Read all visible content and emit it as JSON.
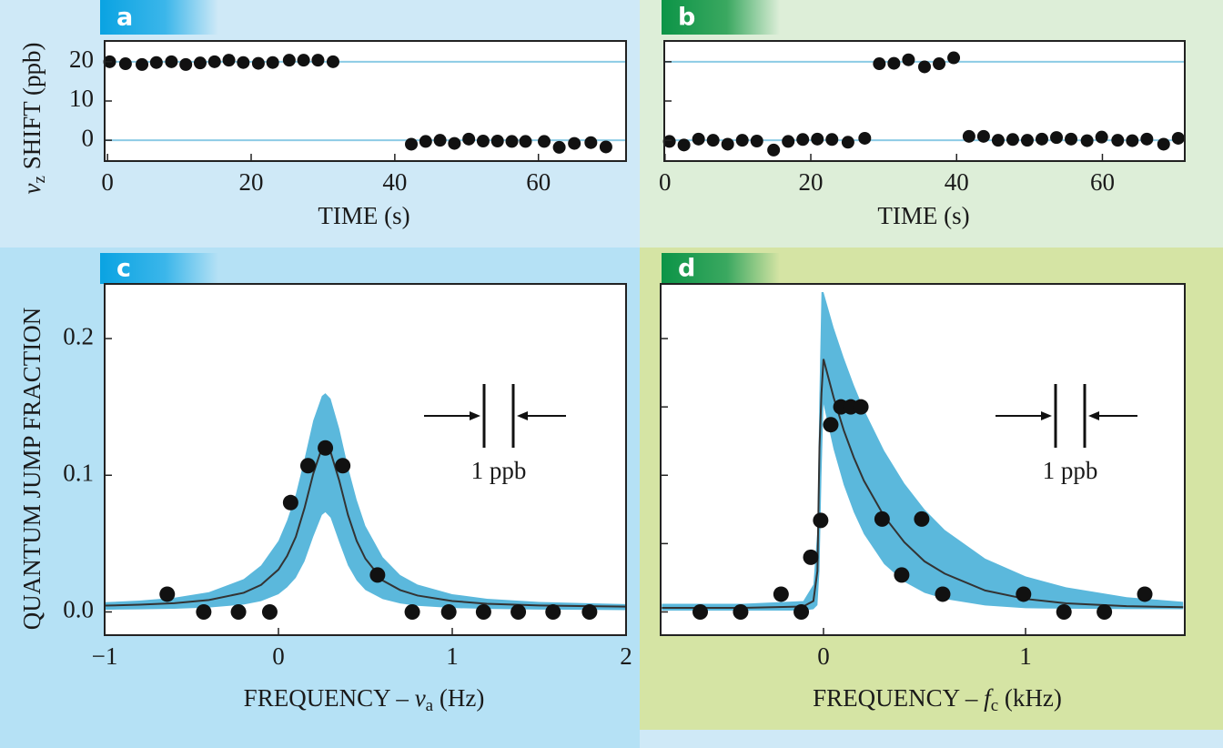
{
  "chart_data": [
    {
      "type": "scatter",
      "label": "a",
      "xlabel": {
        "text": "TIME (s)"
      },
      "ylabel": {
        "symbol": "ν",
        "subscript": "z",
        "suffix": " SHIFT (ppb)"
      },
      "xlim": [
        -0.4,
        72.2
      ],
      "ylim": [
        -5.3,
        25.3
      ],
      "xticks": [
        0,
        20,
        40,
        60
      ],
      "yticks": [
        0,
        10,
        20
      ],
      "hlines": [
        0,
        20
      ],
      "hline_color": "#8ccbe5",
      "series": [
        {
          "mark": "dots",
          "color": "#111111",
          "x": [
            0.3,
            2.5,
            4.8,
            6.8,
            8.9,
            10.9,
            12.9,
            14.9,
            16.9,
            18.9,
            21,
            23,
            25.3,
            27.3,
            29.3,
            31.4,
            42.3,
            44.3,
            46.3,
            48.3,
            50.3,
            52.3,
            54.3,
            56.3,
            58.2,
            60.8,
            62.9,
            65,
            67.3,
            69.4
          ],
          "values": [
            20,
            19.5,
            19.3,
            19.8,
            20,
            19.3,
            19.7,
            20,
            20.4,
            19.8,
            19.6,
            19.8,
            20.4,
            20.4,
            20.4,
            20,
            -1,
            -0.3,
            0,
            -0.8,
            0.3,
            -0.2,
            -0.2,
            -0.3,
            -0.3,
            -0.3,
            -1.8,
            -0.8,
            -0.6,
            -1.7
          ]
        }
      ]
    },
    {
      "type": "scatter",
      "label": "b",
      "xlabel": {
        "text": "TIME (s)"
      },
      "xlim": [
        -0.1,
        71.3
      ],
      "ylim": [
        -5.3,
        25.3
      ],
      "xticks": [
        0,
        20,
        40,
        60
      ],
      "yticks": [
        0,
        10,
        20
      ],
      "ytick_labels": false,
      "hlines": [
        0,
        20
      ],
      "hline_color": "#8ccbe5",
      "series": [
        {
          "mark": "dots",
          "color": "#111111",
          "x": [
            0.6,
            2.6,
            4.6,
            6.6,
            8.6,
            10.6,
            12.6,
            14.9,
            16.9,
            18.9,
            20.9,
            22.9,
            25.1,
            27.4,
            29.4,
            31.4,
            33.4,
            35.6,
            37.6,
            39.6,
            41.7,
            43.7,
            45.7,
            47.7,
            49.7,
            51.7,
            53.7,
            55.7,
            57.9,
            59.9,
            62.1,
            64.1,
            66.1,
            68.4,
            70.4
          ],
          "values": [
            -0.3,
            -1.2,
            0.3,
            0,
            -1,
            0,
            -0.2,
            -2.5,
            -0.3,
            0.2,
            0.3,
            0.2,
            -0.5,
            0.5,
            19.5,
            19.6,
            20.5,
            18.7,
            19.5,
            21,
            1,
            1,
            0,
            0.2,
            0,
            0.3,
            0.7,
            0.3,
            -0.1,
            0.8,
            0,
            -0.1,
            0.3,
            -1,
            0.5
          ]
        }
      ]
    },
    {
      "type": "scatter",
      "label": "c",
      "xlabel": {
        "prefix": "FREQUENCY – ",
        "symbol": "ν",
        "subscript": "a",
        "suffix": " (Hz)"
      },
      "ylabel": {
        "text": "QUANTUM JUMP FRACTION"
      },
      "annotation": "1 ppb",
      "xlim": [
        -1,
        2
      ],
      "ylim": [
        -0.017,
        0.24
      ],
      "xticks": [
        {
          "value": -1,
          "label": "−1"
        },
        0,
        1,
        2
      ],
      "yticks": [
        {
          "value": 0,
          "label": "0.0"
        },
        0.1,
        0.2
      ],
      "series": [
        {
          "mark": "line",
          "color": "#333333",
          "x": [
            -1,
            -0.8,
            -0.6,
            -0.4,
            -0.2,
            -0.1,
            0,
            0.05,
            0.1,
            0.15,
            0.2,
            0.25,
            0.27,
            0.3,
            0.35,
            0.4,
            0.45,
            0.5,
            0.6,
            0.7,
            0.8,
            1,
            1.2,
            1.5,
            2
          ],
          "values": [
            0.0046,
            0.0053,
            0.0064,
            0.0087,
            0.014,
            0.0198,
            0.031,
            0.041,
            0.055,
            0.076,
            0.101,
            0.12,
            0.122,
            0.117,
            0.096,
            0.071,
            0.052,
            0.039,
            0.023,
            0.016,
            0.012,
            0.008,
            0.006,
            0.0047,
            0.0039
          ],
          "band": {
            "color": "#5bb8dc",
            "lower": [
              0.0016,
              0.0019,
              0.0023,
              0.0032,
              0.0054,
              0.0079,
              0.013,
              0.018,
              0.025,
              0.037,
              0.055,
              0.071,
              0.073,
              0.069,
              0.051,
              0.034,
              0.023,
              0.016,
              0.0094,
              0.0062,
              0.0045,
              0.0029,
              0.0022,
              0.0017,
              0.0013
            ],
            "upper": [
              0.0071,
              0.0083,
              0.0104,
              0.0145,
              0.024,
              0.034,
              0.052,
              0.067,
              0.086,
              0.112,
              0.14,
              0.158,
              0.16,
              0.156,
              0.134,
              0.106,
              0.082,
              0.063,
              0.04,
              0.027,
              0.02,
              0.013,
              0.0096,
              0.0073,
              0.0057
            ]
          }
        },
        {
          "mark": "dots",
          "color": "#111111",
          "x": [
            -0.64,
            -0.43,
            -0.23,
            -0.05,
            0.07,
            0.17,
            0.27,
            0.37,
            0.57,
            0.77,
            0.98,
            1.18,
            1.38,
            1.58,
            1.79
          ],
          "values": [
            0.013,
            0,
            0,
            0,
            0.08,
            0.107,
            0.12,
            0.107,
            0.027,
            0,
            0,
            0,
            0,
            0,
            0
          ]
        }
      ]
    },
    {
      "type": "scatter",
      "label": "d",
      "xlabel": {
        "prefix": "FREQUENCY – ",
        "symbol": "f",
        "subscript": "c",
        "suffix": " (kHz)"
      },
      "annotation": "1 ppb",
      "xlim": [
        -0.806,
        1.788
      ],
      "ylim": [
        -0.017,
        0.24
      ],
      "xticks": [
        0,
        1
      ],
      "yticks": [
        0,
        0.05,
        0.1,
        0.15,
        0.2
      ],
      "ytick_labels": false,
      "series": [
        {
          "mark": "line",
          "color": "#333333",
          "x": [
            -0.8,
            -0.4,
            -0.1,
            -0.05,
            -0.03,
            -0.02,
            -0.01,
            0,
            0.05,
            0.1,
            0.15,
            0.2,
            0.3,
            0.4,
            0.5,
            0.6,
            0.8,
            1,
            1.2,
            1.5,
            1.78
          ],
          "values": [
            0.003,
            0.003,
            0.004,
            0.008,
            0.03,
            0.12,
            0.16,
            0.185,
            0.157,
            0.133,
            0.113,
            0.096,
            0.07,
            0.051,
            0.037,
            0.028,
            0.0157,
            0.0095,
            0.0063,
            0.0042,
            0.0035
          ],
          "band": {
            "color": "#5bb8dc",
            "lower": [
              0.001,
              0.001,
              0.001,
              0.002,
              0.005,
              0.03,
              0.1,
              0.152,
              0.119,
              0.093,
              0.073,
              0.057,
              0.035,
              0.022,
              0.014,
              0.0095,
              0.0047,
              0.0027,
              0.0024,
              0.0021,
              0.002
            ],
            "upper": [
              0.006,
              0.006,
              0.008,
              0.02,
              0.06,
              0.16,
              0.234,
              0.234,
              0.208,
              0.186,
              0.166,
              0.148,
              0.118,
              0.094,
              0.075,
              0.06,
              0.039,
              0.026,
              0.018,
              0.0108,
              0.0074
            ]
          }
        },
        {
          "mark": "dots",
          "color": "#111111",
          "x": [
            -0.61,
            -0.41,
            -0.21,
            -0.11,
            -0.063,
            -0.014,
            0.036,
            0.086,
            0.135,
            0.185,
            0.29,
            0.387,
            0.486,
            0.59,
            0.99,
            1.19,
            1.39,
            1.59
          ],
          "values": [
            0,
            0,
            0.013,
            0,
            0.04,
            0.067,
            0.137,
            0.15,
            0.15,
            0.15,
            0.068,
            0.027,
            0.068,
            0.013,
            0.013,
            0,
            0,
            0.013
          ]
        }
      ]
    }
  ]
}
